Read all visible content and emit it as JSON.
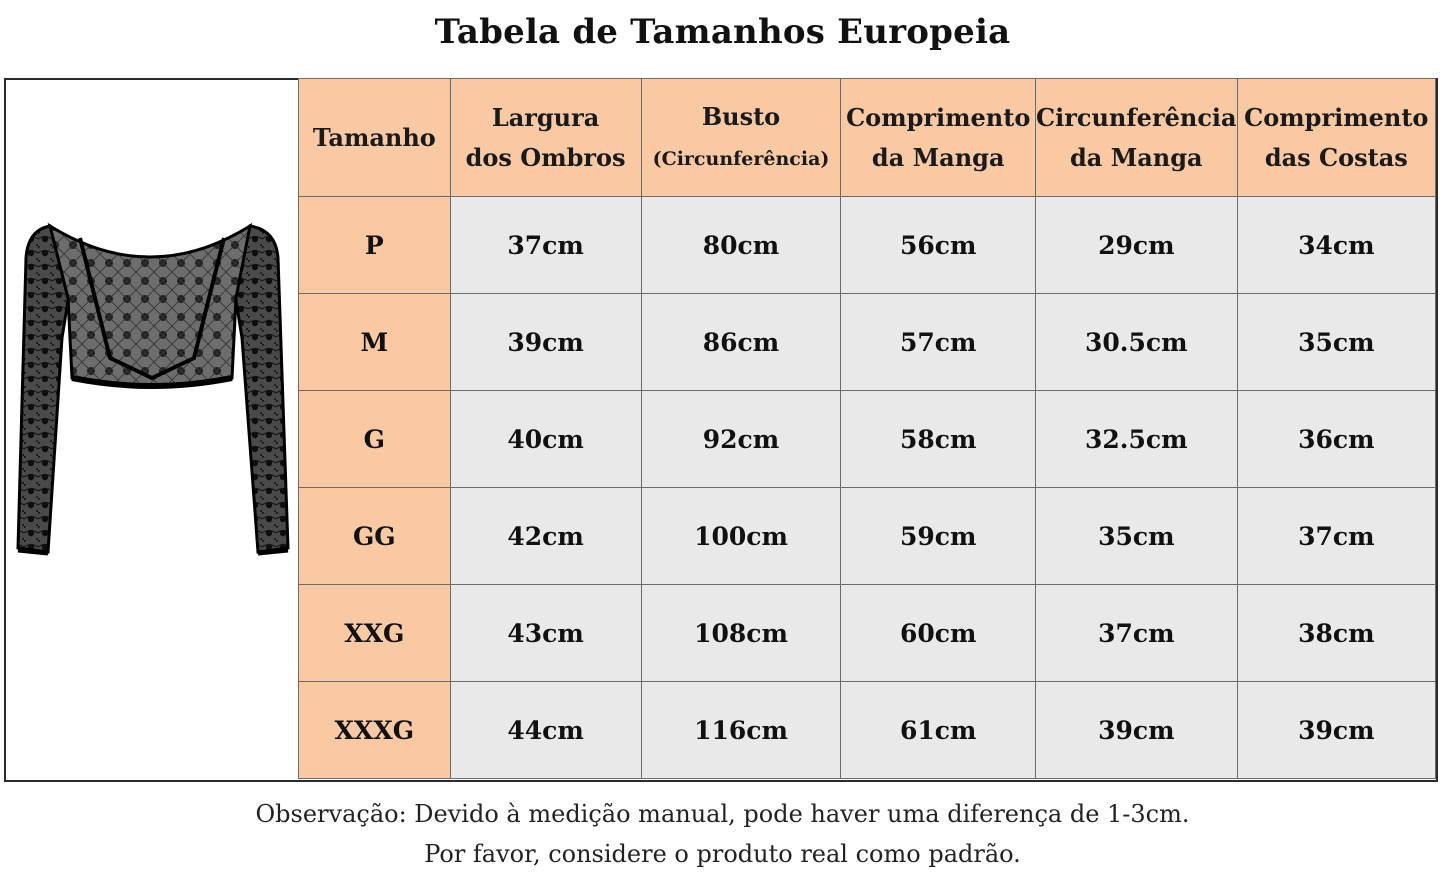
{
  "title": "Tabela de Tamanhos Europeia",
  "table": {
    "headers": [
      {
        "line1": "Tamanho",
        "line2": ""
      },
      {
        "line1": "Largura",
        "line2": "dos Ombros"
      },
      {
        "line1": "Busto",
        "line2": "(Circunferência)"
      },
      {
        "line1": "Comprimento",
        "line2": "da Manga"
      },
      {
        "line1": "Circunferência",
        "line2": "da Manga"
      },
      {
        "line1": "Comprimento",
        "line2": "das Costas"
      }
    ],
    "rows": [
      [
        "P",
        "37cm",
        "80cm",
        "56cm",
        "29cm",
        "34cm"
      ],
      [
        "M",
        "39cm",
        "86cm",
        "57cm",
        "30.5cm",
        "35cm"
      ],
      [
        "G",
        "40cm",
        "92cm",
        "58cm",
        "32.5cm",
        "36cm"
      ],
      [
        "GG",
        "42cm",
        "100cm",
        "59cm",
        "35cm",
        "37cm"
      ],
      [
        "XXG",
        "43cm",
        "108cm",
        "60cm",
        "37cm",
        "38cm"
      ],
      [
        "XXXG",
        "44cm",
        "116cm",
        "61cm",
        "39cm",
        "39cm"
      ]
    ]
  },
  "note": {
    "line1": "Observação: Devido à medição manual, pode haver uma diferença de 1-3cm.",
    "line2": "Por favor, considere o produto real como padrão."
  },
  "colors": {
    "header_bg": "#f9c9a4",
    "cell_bg": "#e9e9e9",
    "border": "#6b6b6b"
  },
  "image": {
    "icon": "lace-shrug-top-photo"
  }
}
